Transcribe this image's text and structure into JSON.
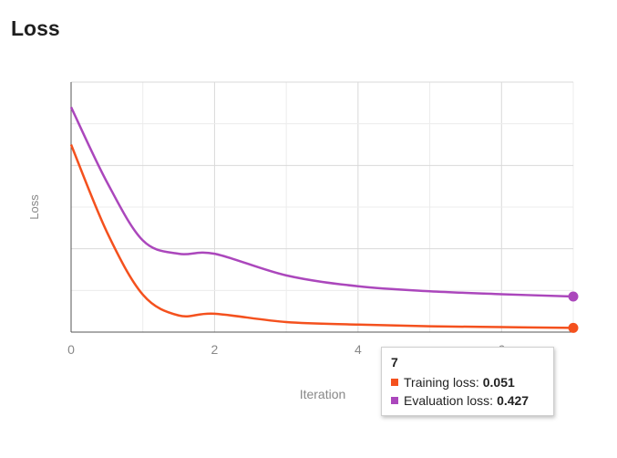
{
  "page": {
    "title": "Loss"
  },
  "chart_data": {
    "type": "line",
    "xlabel": "Iteration",
    "ylabel": "Loss",
    "xlim": [
      0,
      7
    ],
    "ylim": [
      0,
      3
    ],
    "x_ticks": [
      "0",
      "2",
      "4",
      "6"
    ],
    "grid": true,
    "series": [
      {
        "name": "Training loss",
        "color": "#f4511e",
        "x": [
          0,
          0.5,
          1,
          1.5,
          2,
          3,
          4,
          5,
          6,
          7
        ],
        "y": [
          2.25,
          1.2,
          0.45,
          0.2,
          0.22,
          0.12,
          0.09,
          0.07,
          0.06,
          0.051
        ]
      },
      {
        "name": "Evaluation loss",
        "color": "#ab47bc",
        "x": [
          0,
          0.5,
          1,
          1.5,
          2,
          3,
          4,
          5,
          6,
          7
        ],
        "y": [
          2.7,
          1.8,
          1.1,
          0.94,
          0.94,
          0.68,
          0.55,
          0.49,
          0.455,
          0.427
        ]
      }
    ]
  },
  "tooltip": {
    "header": "7",
    "rows": [
      {
        "label": "Training loss:",
        "value": "0.051",
        "color": "#f4511e"
      },
      {
        "label": "Evaluation loss:",
        "value": "0.427",
        "color": "#ab47bc"
      }
    ]
  }
}
